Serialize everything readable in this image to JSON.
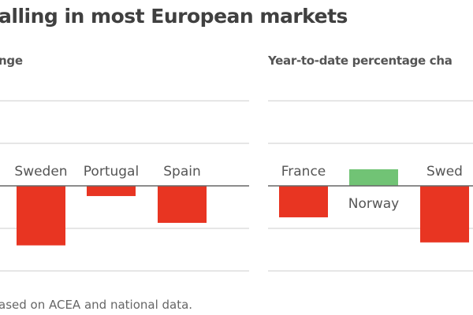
{
  "title": "alling in most European markets",
  "footnote": "ased on ACEA and national data.",
  "colors": {
    "negative": "#e83522",
    "positive": "#71c375",
    "grid": "#dddddd",
    "zero": "#666666"
  },
  "chart_data": [
    {
      "type": "bar",
      "title": "nge",
      "categories": [
        "Sweden",
        "Portugal",
        "Spain"
      ],
      "values": [
        -1.4,
        -0.24,
        -0.87
      ],
      "ylim": [
        -2,
        2
      ],
      "grid": true
    },
    {
      "type": "bar",
      "title": "Year-to-date percentage cha",
      "categories": [
        "France",
        "Norway",
        "Swed"
      ],
      "values": [
        -0.74,
        0.39,
        -1.33
      ],
      "ylim": [
        -2,
        2
      ],
      "grid": true
    }
  ]
}
